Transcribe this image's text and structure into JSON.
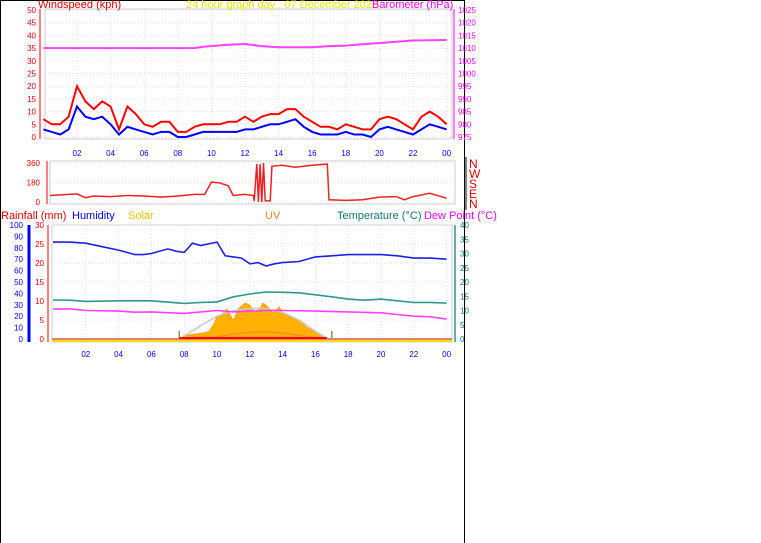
{
  "header": {
    "windspeed_label": "Windspeed (kph)",
    "title": "24 hour graph day : 07 December 2025",
    "barometer_label": "Barometer (hPa)"
  },
  "direction_labels": [
    "N",
    "W",
    "S",
    "E",
    "N"
  ],
  "legend": {
    "rainfall": "Rainfall (mm)",
    "humidity": "Humidity",
    "solar": "Solar",
    "uv": "UV",
    "temperature": "Temperature (°C)",
    "dew_point": "Dew Point (°C)"
  },
  "colors": {
    "gust": "#ff0000",
    "average": "#0000ff",
    "barometer": "#ff40ff",
    "direction": "#ee2222",
    "humidity": "#2020e0",
    "temperature": "#2a9a8a",
    "dew_point": "#ff40ff",
    "solar": "#ffb000",
    "solar_max": "#c8c8c8",
    "uv": "#ff7f27",
    "rainfall": "#ff0000",
    "title": "#ffff00"
  },
  "chart_data": [
    {
      "type": "line",
      "title": "",
      "xlabel": "",
      "x_ticks": [
        "02",
        "04",
        "06",
        "08",
        "10",
        "12",
        "14",
        "16",
        "18",
        "20",
        "22",
        "00"
      ],
      "ylabel": "Windspeed (kph)",
      "ylim": [
        0,
        50
      ],
      "y_ticks": [
        0,
        5,
        10,
        15,
        20,
        25,
        30,
        35,
        40,
        45,
        50
      ],
      "y2label": "Barometer (hPa)",
      "y2lim": [
        975,
        1025
      ],
      "y2_ticks": [
        975,
        980,
        985,
        990,
        995,
        1000,
        1005,
        1010,
        1015,
        1020,
        1025
      ],
      "grid": true,
      "series": [
        {
          "key": "gust",
          "x": [
            0,
            0.5,
            1,
            1.5,
            2,
            2.5,
            3,
            3.5,
            4,
            4.5,
            5,
            5.5,
            6,
            6.5,
            7,
            7.5,
            8,
            8.5,
            9,
            9.5,
            10,
            10.5,
            11,
            11.5,
            12,
            12.5,
            13,
            13.5,
            14,
            14.5,
            15,
            15.5,
            16,
            16.5,
            17,
            17.5,
            18,
            18.5,
            19,
            19.5,
            20,
            20.5,
            21,
            21.5,
            22,
            22.5,
            23,
            23.5,
            24
          ],
          "values": [
            7,
            5,
            5,
            8,
            20,
            14,
            11,
            14,
            12,
            3,
            12,
            9,
            5,
            4,
            6,
            6,
            2,
            2,
            4,
            5,
            5,
            5,
            6,
            6,
            8,
            6,
            8,
            9,
            9,
            11,
            11,
            8,
            6,
            4,
            4,
            3,
            5,
            4,
            3,
            3,
            7,
            8,
            7,
            5,
            3,
            8,
            10,
            8,
            5
          ]
        },
        {
          "key": "average",
          "x": [
            0,
            0.5,
            1,
            1.5,
            2,
            2.5,
            3,
            3.5,
            4,
            4.5,
            5,
            5.5,
            6,
            6.5,
            7,
            7.5,
            8,
            8.5,
            9,
            9.5,
            10,
            10.5,
            11,
            11.5,
            12,
            12.5,
            13,
            13.5,
            14,
            14.5,
            15,
            15.5,
            16,
            16.5,
            17,
            17.5,
            18,
            18.5,
            19,
            19.5,
            20,
            20.5,
            21,
            21.5,
            22,
            22.5,
            23,
            23.5,
            24
          ],
          "values": [
            3,
            2,
            1,
            3,
            12,
            8,
            7,
            8,
            5,
            1,
            4,
            3,
            2,
            1,
            2,
            2,
            0,
            0,
            1,
            2,
            2,
            2,
            2,
            2,
            3,
            3,
            4,
            5,
            5,
            6,
            7,
            4,
            2,
            1,
            1,
            1,
            2,
            1,
            1,
            0,
            3,
            4,
            3,
            2,
            1,
            3,
            5,
            4,
            3
          ]
        },
        {
          "key": "barometer",
          "axis": "y2",
          "x": [
            0,
            9,
            9.5,
            11,
            12,
            13,
            14,
            16,
            17,
            18,
            19,
            20,
            21,
            22,
            24
          ],
          "values": [
            1010,
            1010,
            1010.5,
            1011.3,
            1011.6,
            1010.8,
            1010.3,
            1010.3,
            1010.8,
            1011,
            1011.5,
            1012,
            1012.5,
            1013,
            1013.2
          ]
        }
      ]
    },
    {
      "type": "line",
      "title": "",
      "ylabel": "",
      "ylim": [
        0,
        360
      ],
      "y_ticks": [
        0,
        180,
        360
      ],
      "grid": true,
      "series": [
        {
          "key": "direction",
          "x": [
            0,
            2,
            2.5,
            3,
            4,
            5,
            6,
            7,
            8,
            9,
            9.6,
            10,
            10.5,
            11,
            11.3,
            12,
            12.5,
            12.55,
            12.7,
            12.8,
            12.9,
            13.0,
            13.1,
            13.2,
            13.5,
            13.6,
            14.2,
            15,
            16,
            16.9,
            17,
            18,
            19,
            20,
            21,
            21.5,
            22,
            23,
            24
          ],
          "values": [
            60,
            75,
            40,
            55,
            50,
            60,
            55,
            45,
            55,
            70,
            70,
            185,
            175,
            150,
            60,
            70,
            60,
            10,
            350,
            0,
            350,
            0,
            360,
            10,
            10,
            330,
            340,
            320,
            340,
            350,
            20,
            15,
            20,
            45,
            50,
            20,
            50,
            80,
            35
          ]
        }
      ]
    },
    {
      "type": "line",
      "title": "",
      "x_ticks": [
        "02",
        "04",
        "06",
        "08",
        "10",
        "12",
        "14",
        "16",
        "18",
        "20",
        "22",
        "00"
      ],
      "y_axes": {
        "humidity": {
          "lim": [
            0,
            100
          ],
          "ticks": [
            0,
            10,
            20,
            30,
            40,
            50,
            60,
            70,
            80,
            90,
            100
          ]
        },
        "rainfall": {
          "lim": [
            0,
            30
          ],
          "ticks": [
            0,
            5,
            10,
            15,
            20,
            25,
            30
          ]
        },
        "temperature": {
          "lim": [
            0,
            40
          ],
          "ticks": [
            0,
            5,
            10,
            15,
            20,
            25,
            30,
            35,
            40
          ]
        }
      },
      "grid": true,
      "sunrise": 7.7,
      "sunset": 17.0,
      "series": [
        {
          "key": "humidity",
          "axis": "humidity",
          "x": [
            0,
            1,
            2,
            3,
            4,
            5,
            5.5,
            6,
            7,
            7.5,
            8,
            8.5,
            9,
            10,
            10.5,
            11,
            11.5,
            12,
            12.5,
            13,
            13.5,
            14,
            15,
            16,
            17,
            18,
            19,
            20,
            21,
            22,
            23,
            24
          ],
          "values": [
            85,
            85,
            84,
            81,
            78,
            74,
            74,
            75,
            79,
            77,
            76,
            84,
            82,
            85,
            73,
            72,
            71,
            66,
            67,
            64,
            66,
            67,
            68,
            72,
            73,
            74,
            74,
            74,
            73,
            71,
            71,
            70
          ]
        },
        {
          "key": "temperature",
          "axis": "temperature",
          "x": [
            0,
            1,
            2,
            4,
            6,
            8,
            9,
            10,
            11,
            12,
            13,
            14,
            15,
            16,
            17,
            18,
            19,
            20,
            21,
            22,
            23,
            24
          ],
          "values": [
            13.7,
            13.6,
            13.2,
            13.4,
            13.4,
            12.5,
            12.8,
            13,
            14.8,
            15.8,
            16.5,
            16.4,
            16.2,
            15.5,
            14.8,
            14,
            13.6,
            14,
            13.4,
            12.8,
            12.8,
            12.6
          ]
        },
        {
          "key": "dew_point",
          "axis": "temperature",
          "x": [
            0,
            1,
            2,
            4,
            5,
            6,
            8,
            9,
            10,
            11,
            12,
            13,
            14,
            16,
            18,
            20,
            21,
            22,
            23,
            24
          ],
          "values": [
            10.5,
            10.6,
            10,
            9.8,
            9.4,
            9.5,
            9,
            9.5,
            10,
            9.5,
            9.8,
            10,
            10,
            9.8,
            9.5,
            9.2,
            8.6,
            8,
            7.8,
            7
          ]
        },
        {
          "key": "solar",
          "axis": "rainfall",
          "x": [
            7.7,
            8,
            9,
            9.5,
            9.8,
            10,
            10.3,
            10.6,
            11,
            11.3,
            11.7,
            12,
            12.3,
            12.6,
            12.8,
            13,
            13.4,
            13.8,
            14,
            14.5,
            15,
            15.5,
            16,
            16.5,
            16.9
          ],
          "values": [
            0,
            1,
            1.5,
            2,
            4,
            6,
            6.5,
            8,
            5,
            8,
            9.5,
            9,
            7,
            8,
            9.5,
            9,
            7,
            8.5,
            7,
            6,
            5,
            3,
            2,
            0.5,
            0
          ]
        },
        {
          "key": "solar_max",
          "axis": "rainfall",
          "x": [
            7.7,
            9,
            10,
            11,
            12,
            12.5,
            13,
            14,
            15,
            16,
            16.8
          ],
          "values": [
            0,
            3.5,
            6,
            7.5,
            8,
            8.1,
            8,
            7,
            5,
            2,
            0
          ]
        },
        {
          "key": "uv",
          "axis": "rainfall",
          "x": [
            9.5,
            10,
            11,
            12,
            13,
            14,
            15,
            16,
            16.5
          ],
          "values": [
            0,
            0.6,
            1.3,
            1.8,
            1.9,
            1.6,
            1,
            0.3,
            0
          ]
        },
        {
          "key": "rainfall",
          "axis": "rainfall",
          "x": [
            0,
            24
          ],
          "values": [
            0,
            0
          ]
        }
      ]
    }
  ]
}
